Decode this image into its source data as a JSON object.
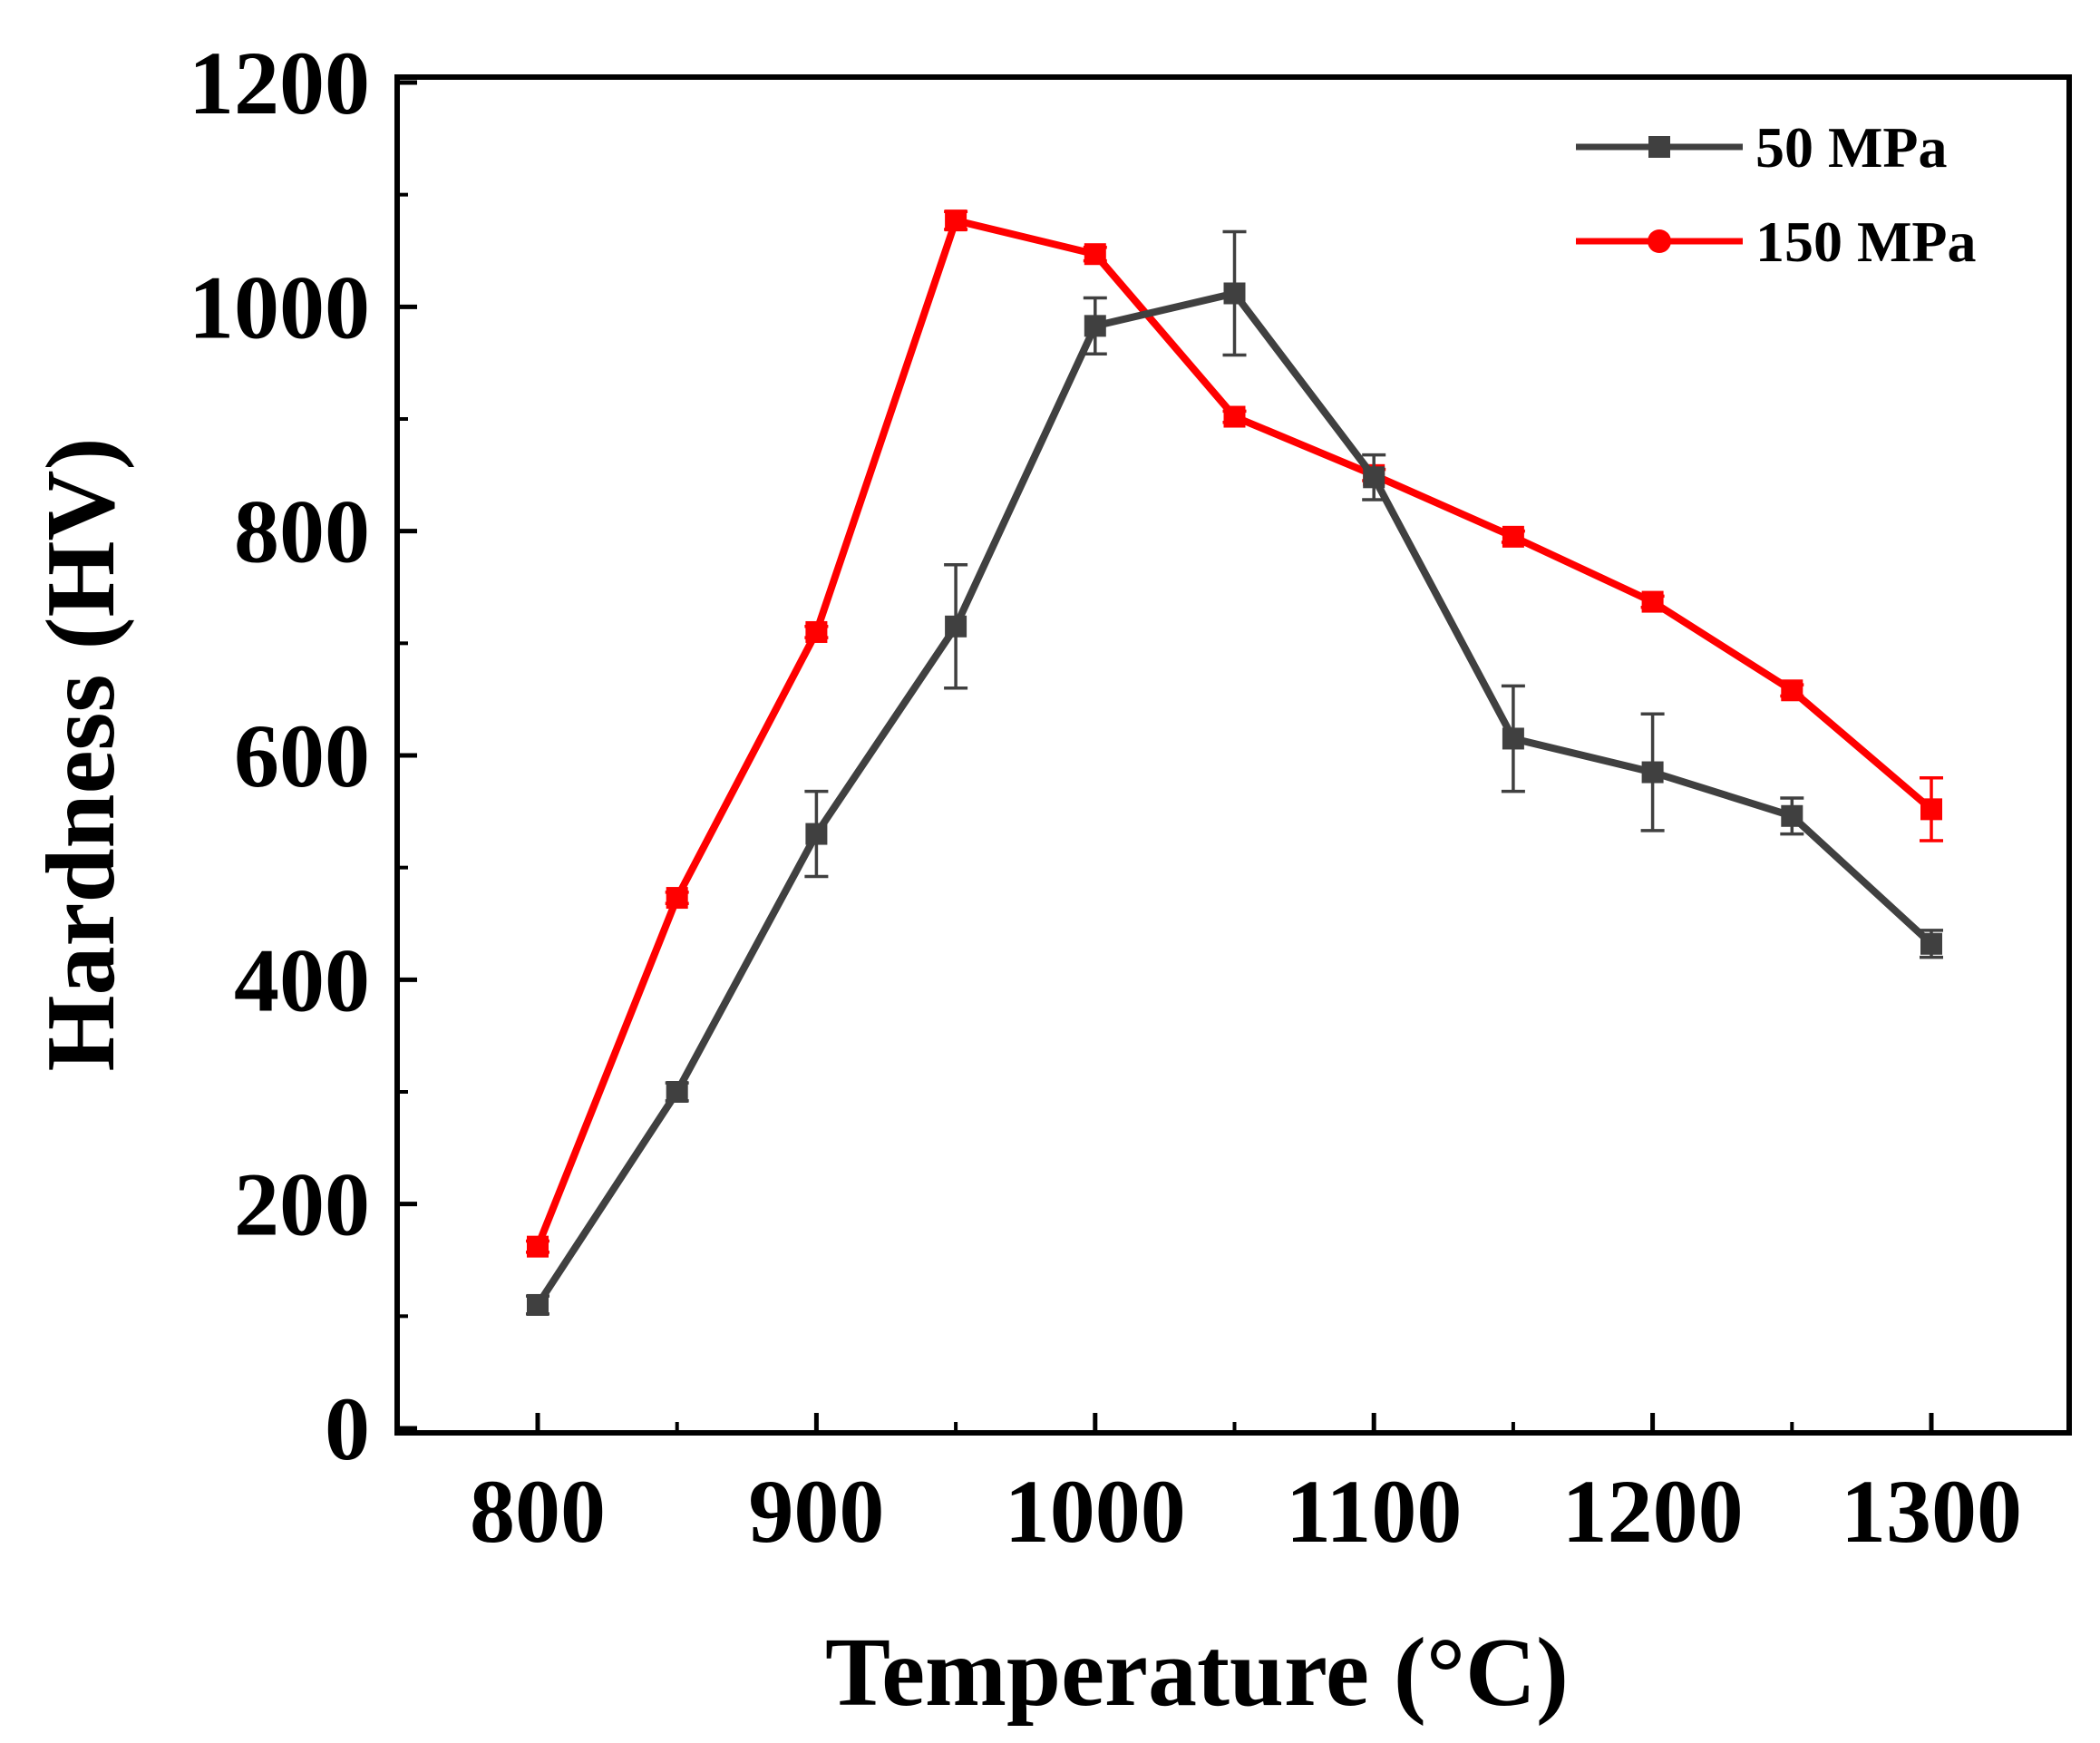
{
  "chart_data": {
    "type": "line",
    "title": "",
    "xlabel": "Temperature (°C)",
    "ylabel": "Hardness (HV)",
    "xlim": [
      750,
      1350
    ],
    "ylim": [
      0,
      1200
    ],
    "xticks": [
      800,
      900,
      1000,
      1100,
      1200,
      1300
    ],
    "yticks": [
      0,
      200,
      400,
      600,
      800,
      1000,
      1200
    ],
    "x": [
      800,
      850,
      900,
      950,
      1000,
      1050,
      1100,
      1150,
      1200,
      1250,
      1300
    ],
    "legend_position": "top-right",
    "series": [
      {
        "name": "50 MPa",
        "color": "#404040",
        "marker": "square",
        "values": [
          110,
          300,
          530,
          715,
          983,
          1012,
          848,
          615,
          585,
          546,
          432
        ],
        "errors": [
          8,
          8,
          38,
          55,
          25,
          55,
          20,
          47,
          52,
          16,
          12
        ]
      },
      {
        "name": "150 MPa",
        "color": "#ff0000",
        "marker": "square",
        "legend_marker": "circle",
        "values": [
          162,
          473,
          710,
          1077,
          1047,
          902,
          850,
          795,
          737,
          658,
          552
        ],
        "errors": [
          5,
          5,
          5,
          8,
          6,
          5,
          5,
          5,
          5,
          5,
          28
        ]
      }
    ]
  }
}
